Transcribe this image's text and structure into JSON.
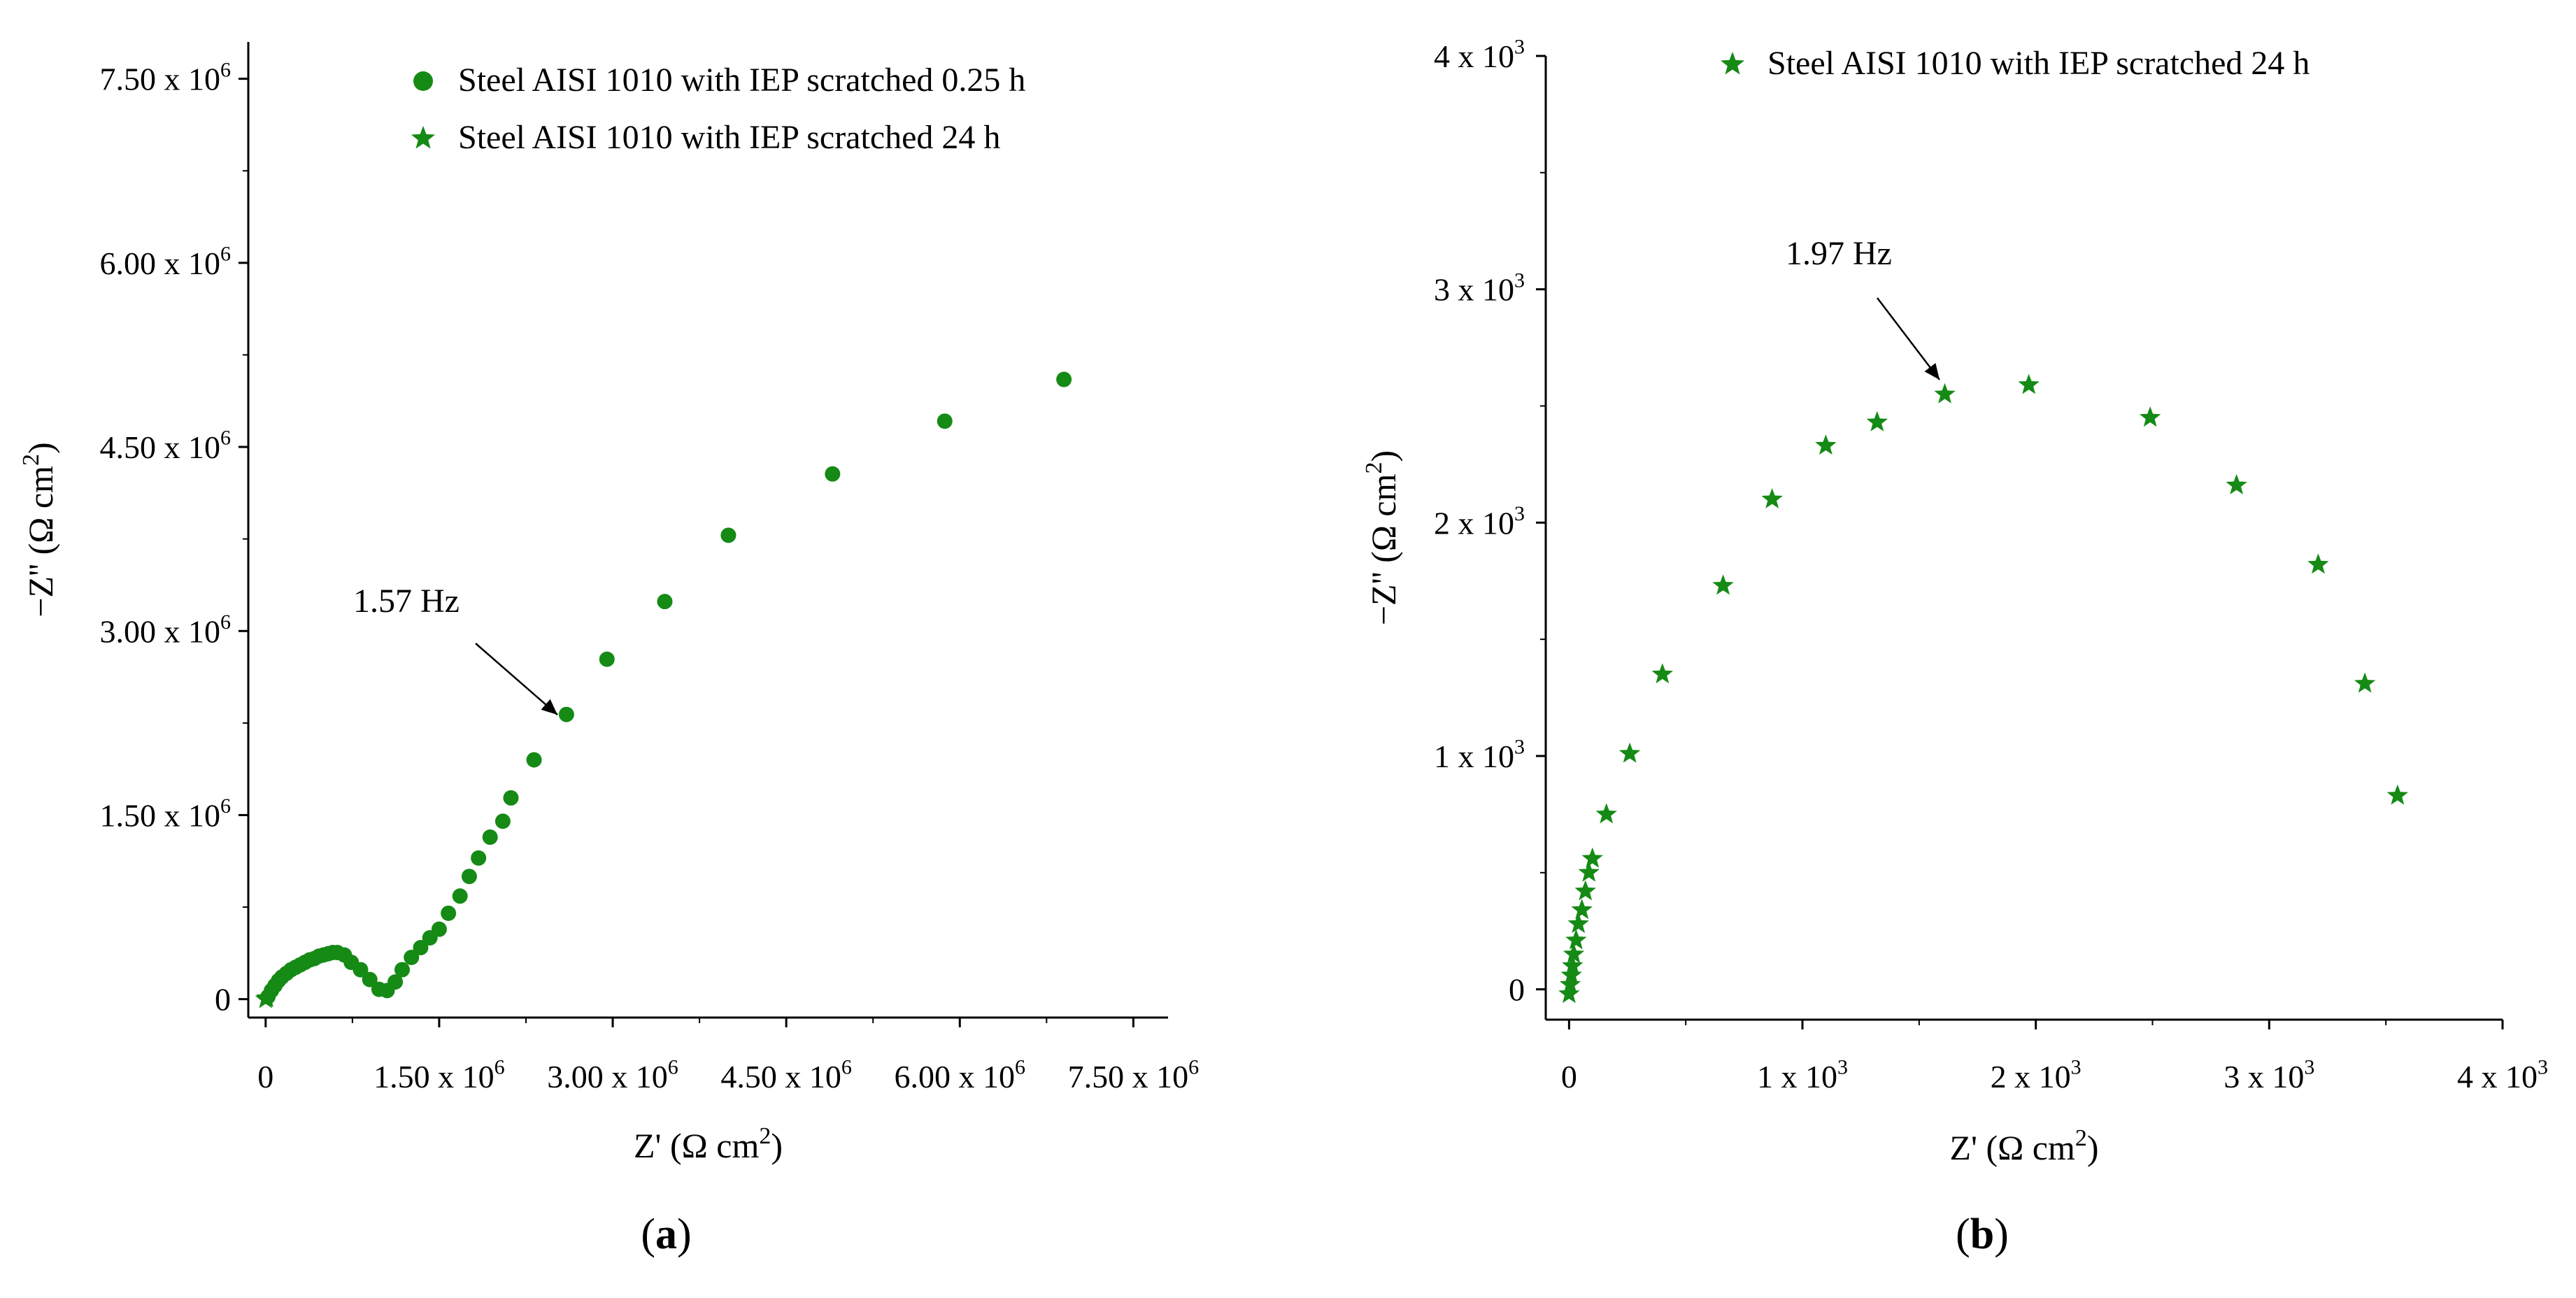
{
  "colors": {
    "marker": "#158a15",
    "axis": "#000000",
    "text": "#000000",
    "background": "#ffffff"
  },
  "chart_data": [
    {
      "type": "scatter",
      "panel_label": "a",
      "xlabel": "Z' (Ω cm",
      "ylabel": "−Z'' (Ω cm",
      "unit_exp": "2",
      "xlim": [
        -0.15,
        7.8
      ],
      "ylim": [
        -0.15,
        7.8
      ],
      "x_ticks": [
        {
          "v": 0,
          "m": "0",
          "e": ""
        },
        {
          "v": 1.5,
          "m": "1.50 x 10",
          "e": "6"
        },
        {
          "v": 3.0,
          "m": "3.00 x 10",
          "e": "6"
        },
        {
          "v": 4.5,
          "m": "4.50 x 10",
          "e": "6"
        },
        {
          "v": 6.0,
          "m": "6.00 x 10",
          "e": "6"
        },
        {
          "v": 7.5,
          "m": "7.50 x 10",
          "e": "6"
        }
      ],
      "y_ticks": [
        {
          "v": 0,
          "m": "0",
          "e": ""
        },
        {
          "v": 1.5,
          "m": "1.50 x 10",
          "e": "6"
        },
        {
          "v": 3.0,
          "m": "3.00 x 10",
          "e": "6"
        },
        {
          "v": 4.5,
          "m": "4.50 x 10",
          "e": "6"
        },
        {
          "v": 6.0,
          "m": "6.00 x 10",
          "e": "6"
        },
        {
          "v": 7.5,
          "m": "7.50 x 10",
          "e": "6"
        }
      ],
      "data_scale": "values in units of 10^6 Ω cm²",
      "series": [
        {
          "name": "Steel AISI 1010 with IEP scratched 0.25 h",
          "marker": "circle",
          "points": [
            [
              0.02,
              0.02
            ],
            [
              0.05,
              0.07
            ],
            [
              0.08,
              0.11
            ],
            [
              0.11,
              0.15
            ],
            [
              0.14,
              0.18
            ],
            [
              0.18,
              0.21
            ],
            [
              0.22,
              0.24
            ],
            [
              0.26,
              0.26
            ],
            [
              0.3,
              0.28
            ],
            [
              0.34,
              0.3
            ],
            [
              0.38,
              0.32
            ],
            [
              0.42,
              0.33
            ],
            [
              0.46,
              0.35
            ],
            [
              0.5,
              0.36
            ],
            [
              0.54,
              0.37
            ],
            [
              0.58,
              0.38
            ],
            [
              0.62,
              0.38
            ],
            [
              0.68,
              0.36
            ],
            [
              0.74,
              0.3
            ],
            [
              0.82,
              0.24
            ],
            [
              0.9,
              0.16
            ],
            [
              0.98,
              0.08
            ],
            [
              1.05,
              0.07
            ],
            [
              1.12,
              0.14
            ],
            [
              1.18,
              0.24
            ],
            [
              1.26,
              0.34
            ],
            [
              1.34,
              0.42
            ],
            [
              1.42,
              0.5
            ],
            [
              1.5,
              0.57
            ],
            [
              1.58,
              0.7
            ],
            [
              1.68,
              0.84
            ],
            [
              1.76,
              1.0
            ],
            [
              1.84,
              1.15
            ],
            [
              1.94,
              1.32
            ],
            [
              2.05,
              1.45
            ],
            [
              2.12,
              1.64
            ],
            [
              2.32,
              1.95
            ],
            [
              2.6,
              2.32
            ],
            [
              2.95,
              2.77
            ],
            [
              3.45,
              3.24
            ],
            [
              4.0,
              3.78
            ],
            [
              4.9,
              4.28
            ],
            [
              5.87,
              4.71
            ],
            [
              6.9,
              5.05
            ]
          ]
        },
        {
          "name": "Steel AISI 1010 with IEP scratched 24 h",
          "marker": "star",
          "points": [
            [
              0.0,
              0.0
            ],
            [
              0.01,
              0.01
            ]
          ]
        }
      ],
      "annotations": [
        {
          "text": "1.57 Hz",
          "target": [
            2.32,
            1.95
          ]
        }
      ]
    },
    {
      "type": "scatter",
      "panel_label": "b",
      "xlabel": "Z' (Ω cm",
      "ylabel": "−Z'' (Ω cm",
      "unit_exp": "2",
      "xlim": [
        -0.1,
        4.0
      ],
      "ylim": [
        -0.13,
        4.0
      ],
      "x_ticks": [
        {
          "v": 0,
          "m": "0",
          "e": ""
        },
        {
          "v": 1,
          "m": "1 x 10",
          "e": "3"
        },
        {
          "v": 2,
          "m": "2 x 10",
          "e": "3"
        },
        {
          "v": 3,
          "m": "3 x 10",
          "e": "3"
        },
        {
          "v": 4,
          "m": "4 x 10",
          "e": "3"
        }
      ],
      "y_ticks": [
        {
          "v": 0,
          "m": "0",
          "e": ""
        },
        {
          "v": 1,
          "m": "1 x 10",
          "e": "3"
        },
        {
          "v": 2,
          "m": "2 x 10",
          "e": "3"
        },
        {
          "v": 3,
          "m": "3 x 10",
          "e": "3"
        },
        {
          "v": 4,
          "m": "4 x 10",
          "e": "3"
        }
      ],
      "data_scale": "values in units of 10^3 Ω cm²",
      "series": [
        {
          "name": "Steel AISI 1010 with IEP scratched 24 h",
          "marker": "star",
          "points": [
            [
              0.0,
              -0.02
            ],
            [
              0.005,
              0.02
            ],
            [
              0.01,
              0.06
            ],
            [
              0.015,
              0.1
            ],
            [
              0.02,
              0.15
            ],
            [
              0.03,
              0.21
            ],
            [
              0.04,
              0.28
            ],
            [
              0.055,
              0.34
            ],
            [
              0.07,
              0.42
            ],
            [
              0.085,
              0.5
            ],
            [
              0.1,
              0.56
            ],
            [
              0.16,
              0.75
            ],
            [
              0.26,
              1.01
            ],
            [
              0.4,
              1.35
            ],
            [
              0.66,
              1.73
            ],
            [
              0.87,
              2.1
            ],
            [
              1.1,
              2.33
            ],
            [
              1.32,
              2.43
            ],
            [
              1.61,
              2.55
            ],
            [
              1.97,
              2.59
            ],
            [
              2.49,
              2.45
            ],
            [
              2.86,
              2.16
            ],
            [
              3.21,
              1.82
            ],
            [
              3.41,
              1.31
            ],
            [
              3.55,
              0.83
            ]
          ]
        }
      ],
      "annotations": [
        {
          "text": "1.97 Hz",
          "target": [
            1.61,
            2.55
          ]
        }
      ]
    }
  ]
}
